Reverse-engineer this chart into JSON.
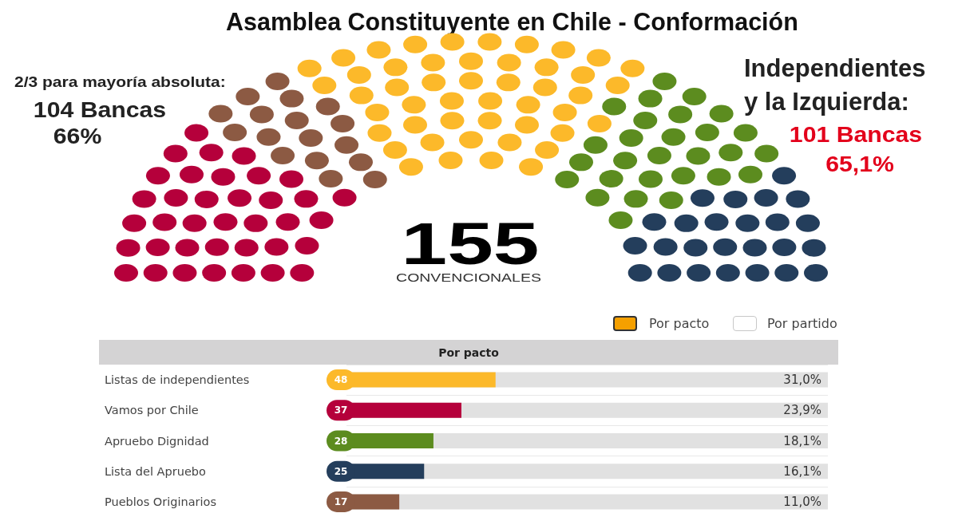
{
  "chart_data": {
    "type": "bar",
    "orientation": "horizontal",
    "title": "Asamblea Constituyente en Chile - Conformación",
    "categories": [
      "Listas de independientes",
      "Vamos por Chile",
      "Apruebo Dignidad",
      "Lista del Apruebo",
      "Pueblos Originarios"
    ],
    "values": [
      48,
      37,
      28,
      25,
      17
    ],
    "colors": [
      "#fcb92a",
      "#b5003b",
      "#5c8c1f",
      "#243e5c",
      "#8c5a43"
    ],
    "xlim": [
      0,
      155
    ],
    "data_labels": true,
    "tick_labels": "y",
    "grid": "y",
    "annotations": [
      "2/3 para mayoría absoluta:",
      "104 Bancas",
      "66%",
      "Independientes",
      "y la Izquierda:",
      "101 Bancas",
      "65,1%",
      "155",
      "CONVENCIONALES",
      "Por pacto",
      "Por partido",
      "Por pacto",
      "31,0%",
      "23,9%",
      "18,1%",
      "16,1%",
      "11,0%"
    ]
  }
}
